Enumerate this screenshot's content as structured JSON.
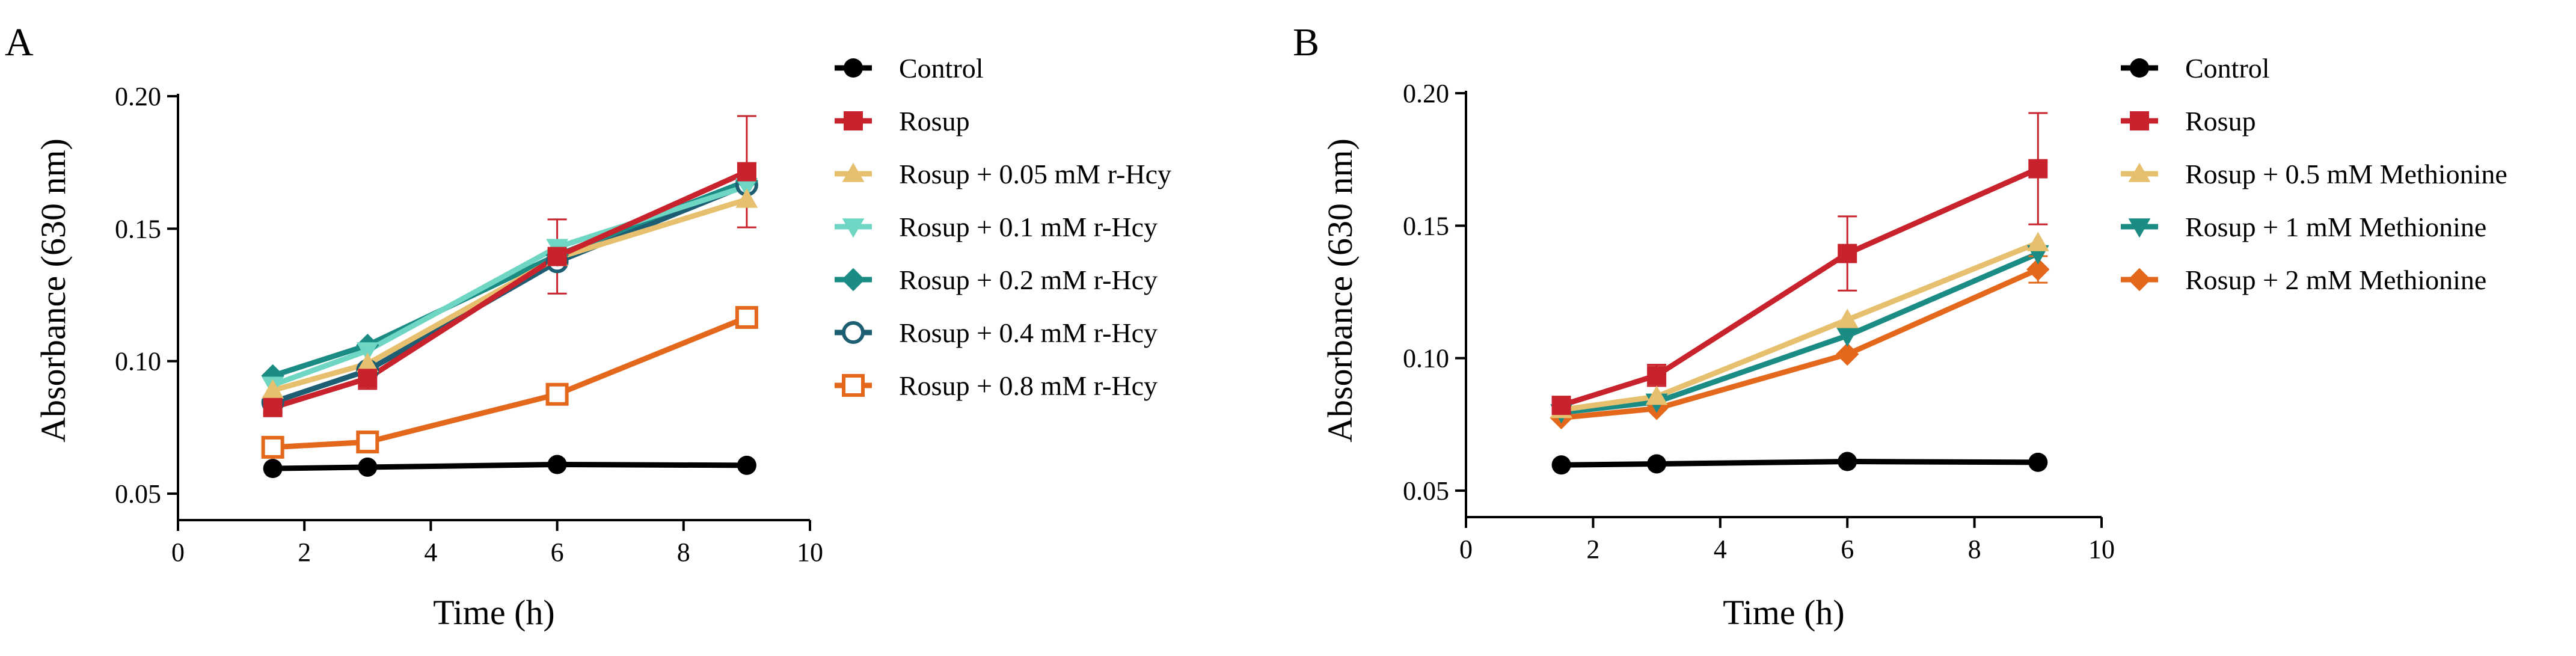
{
  "chart_data": [
    {
      "panel_label": "A",
      "type": "line",
      "xlabel": "Time (h)",
      "ylabel": "Absorbance (630 nm)",
      "xlim": [
        0,
        10
      ],
      "ylim": [
        0.04,
        0.2
      ],
      "xticks": [
        "0",
        "2",
        "4",
        "6",
        "8",
        "10"
      ],
      "yticks": [
        "0.05",
        "0.10",
        "0.15",
        "0.20"
      ],
      "ytick_values": [
        0.05,
        0.1,
        0.15,
        0.2
      ],
      "legend_position": "right",
      "x": [
        1.5,
        3,
        6,
        9
      ],
      "series": [
        {
          "name": "Control",
          "color": "#000000",
          "marker": "circle",
          "filled": true,
          "values": [
            0.0595,
            0.06,
            0.061,
            0.0607
          ],
          "errors": [
            0,
            0,
            0,
            0
          ]
        },
        {
          "name": "Rosup",
          "color": "#c8232c",
          "marker": "square",
          "filled": true,
          "values": [
            0.0825,
            0.0935,
            0.1395,
            0.1715
          ],
          "errors": [
            0.002,
            0.004,
            0.014,
            0.021
          ]
        },
        {
          "name": "Rosup + 0.05 mM r-Hcy",
          "color": "#e6c06e",
          "marker": "triangle-up",
          "filled": true,
          "values": [
            0.089,
            0.099,
            0.139,
            0.161
          ],
          "errors": [
            0,
            0,
            0,
            0
          ]
        },
        {
          "name": "Rosup + 0.1 mM r-Hcy",
          "color": "#6fd6c4",
          "marker": "triangle-down",
          "filled": true,
          "values": [
            0.091,
            0.104,
            0.143,
            0.166
          ],
          "errors": [
            0,
            0,
            0,
            0
          ]
        },
        {
          "name": "Rosup + 0.2 mM r-Hcy",
          "color": "#1b8c84",
          "marker": "diamond",
          "filled": true,
          "values": [
            0.0945,
            0.106,
            0.14,
            0.168
          ],
          "errors": [
            0,
            0,
            0,
            0
          ]
        },
        {
          "name": "Rosup + 0.4 mM r-Hcy",
          "color": "#1d5e73",
          "marker": "circle",
          "filled": false,
          "values": [
            0.0845,
            0.0965,
            0.1375,
            0.1665
          ],
          "errors": [
            0,
            0,
            0,
            0
          ]
        },
        {
          "name": "Rosup + 0.8 mM r-Hcy",
          "color": "#e3681c",
          "marker": "square",
          "filled": false,
          "values": [
            0.0675,
            0.0695,
            0.0875,
            0.1165
          ],
          "errors": [
            0,
            0,
            0,
            0
          ]
        }
      ]
    },
    {
      "panel_label": "B",
      "type": "line",
      "xlabel": "Time (h)",
      "ylabel": "Absorbance (630 nm)",
      "xlim": [
        0,
        10
      ],
      "ylim": [
        0.04,
        0.2
      ],
      "xticks": [
        "0",
        "2",
        "4",
        "6",
        "8",
        "10"
      ],
      "yticks": [
        "0.05",
        "0.10",
        "0.15",
        "0.20"
      ],
      "ytick_values": [
        0.05,
        0.1,
        0.15,
        0.2
      ],
      "legend_position": "right",
      "x": [
        1.5,
        3,
        6,
        9
      ],
      "series": [
        {
          "name": "Control",
          "color": "#000000",
          "marker": "circle",
          "filled": true,
          "values": [
            0.0597,
            0.0601,
            0.061,
            0.0607
          ],
          "errors": [
            0,
            0,
            0,
            0
          ]
        },
        {
          "name": "Rosup",
          "color": "#c8232c",
          "marker": "square",
          "filled": true,
          "values": [
            0.0822,
            0.0935,
            0.1395,
            0.1715
          ],
          "errors": [
            0.002,
            0.004,
            0.014,
            0.021
          ]
        },
        {
          "name": "Rosup + 0.5 mM Methionine",
          "color": "#e6c06e",
          "marker": "triangle-up",
          "filled": true,
          "values": [
            0.0805,
            0.0855,
            0.1145,
            0.1435
          ],
          "errors": [
            0,
            0,
            0,
            0
          ]
        },
        {
          "name": "Rosup + 1 mM Methionine",
          "color": "#1b8c84",
          "marker": "triangle-down",
          "filled": true,
          "values": [
            0.0795,
            0.0835,
            0.1085,
            0.1395
          ],
          "errors": [
            0,
            0,
            0,
            0
          ]
        },
        {
          "name": "Rosup + 2 mM Methionine",
          "color": "#e3681c",
          "marker": "diamond",
          "filled": true,
          "values": [
            0.0775,
            0.081,
            0.1015,
            0.1335
          ],
          "errors": [
            0,
            0,
            0,
            0.005
          ]
        }
      ]
    }
  ]
}
